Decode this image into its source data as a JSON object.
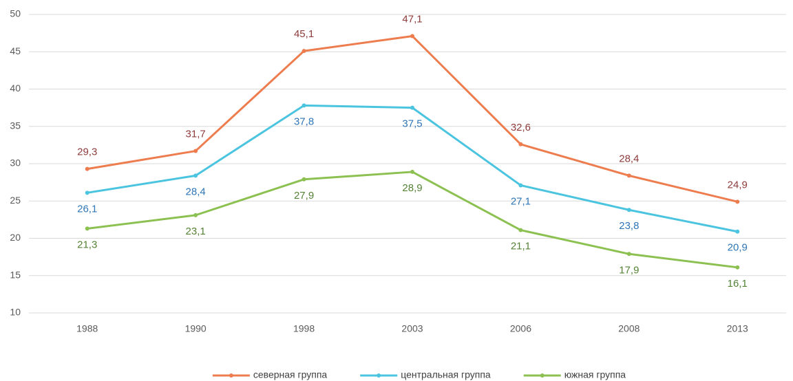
{
  "chart_data": {
    "type": "line",
    "categories": [
      "1988",
      "1990",
      "1998",
      "2003",
      "2006",
      "2008",
      "2013"
    ],
    "series": [
      {
        "name": "северная группа",
        "color": "#ed7d4f",
        "label_color": "#8e3b3b",
        "label_position": "above",
        "values": [
          29.3,
          31.7,
          45.1,
          47.1,
          32.6,
          28.4,
          24.9
        ],
        "value_labels": [
          "29,3",
          "31,7",
          "45,1",
          "47,1",
          "32,6",
          "28,4",
          "24,9"
        ]
      },
      {
        "name": "центральная группа",
        "color": "#4bc4e0",
        "label_color": "#2e75b6",
        "label_position": "below",
        "values": [
          26.1,
          28.4,
          37.8,
          37.5,
          27.1,
          23.8,
          20.9
        ],
        "value_labels": [
          "26,1",
          "28,4",
          "37,8",
          "37,5",
          "27,1",
          "23,8",
          "20,9"
        ]
      },
      {
        "name": "южная группа",
        "color": "#8cc152",
        "label_color": "#548235",
        "label_position": "below",
        "values": [
          21.3,
          23.1,
          27.9,
          28.9,
          21.1,
          17.9,
          16.1
        ],
        "value_labels": [
          "21,3",
          "23,1",
          "27,9",
          "28,9",
          "21,1",
          "17,9",
          "16,1"
        ]
      }
    ],
    "ylim": [
      10,
      50
    ],
    "yticks": [
      10,
      15,
      20,
      25,
      30,
      35,
      40,
      45,
      50
    ],
    "grid": true,
    "legend": "bottom"
  }
}
